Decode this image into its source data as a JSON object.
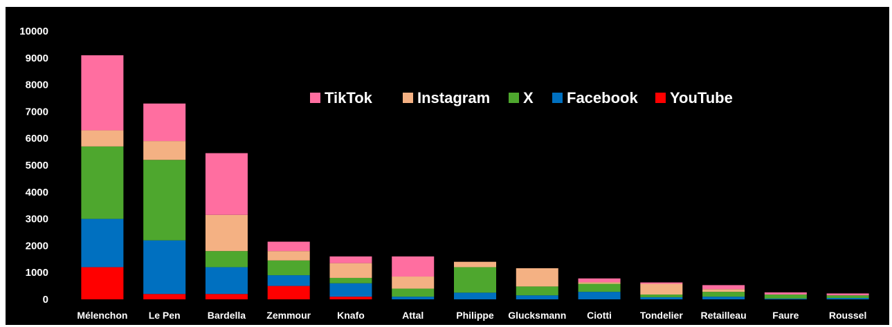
{
  "chart_data": {
    "type": "bar",
    "stacked": true,
    "title": "",
    "xlabel": "",
    "ylabel": "",
    "ylim": [
      0,
      10000
    ],
    "y_ticks": [
      0,
      1000,
      2000,
      3000,
      4000,
      5000,
      6000,
      7000,
      8000,
      9000,
      10000
    ],
    "grid": false,
    "legend_position": "top-center",
    "background": "#000000",
    "categories": [
      "Mélenchon",
      "Le Pen",
      "Bardella",
      "Zemmour",
      "Knafo",
      "Attal",
      "Philippe",
      "Glucksmann",
      "Ciotti",
      "Tondelier",
      "Retailleau",
      "Faure",
      "Roussel"
    ],
    "series": [
      {
        "name": "YouTube",
        "color": "#ff0000",
        "values": [
          1200,
          200,
          200,
          500,
          100,
          0,
          0,
          0,
          0,
          0,
          0,
          0,
          0
        ]
      },
      {
        "name": "Facebook",
        "color": "#0070c0",
        "values": [
          1800,
          2000,
          1000,
          400,
          500,
          100,
          250,
          150,
          280,
          80,
          100,
          30,
          50
        ]
      },
      {
        "name": "X",
        "color": "#4ea72e",
        "values": [
          2700,
          3000,
          600,
          550,
          200,
          300,
          950,
          330,
          300,
          100,
          180,
          150,
          100
        ]
      },
      {
        "name": "Instagram",
        "color": "#f4b183",
        "values": [
          600,
          700,
          1350,
          350,
          550,
          450,
          200,
          680,
          60,
          400,
          100,
          0,
          0
        ]
      },
      {
        "name": "TikTok",
        "color": "#ff6ea0",
        "values": [
          2800,
          1400,
          2300,
          350,
          250,
          750,
          0,
          0,
          140,
          50,
          150,
          80,
          70
        ]
      }
    ],
    "legend_order": [
      "TikTok",
      "Instagram",
      "X",
      "Facebook",
      "YouTube"
    ]
  }
}
